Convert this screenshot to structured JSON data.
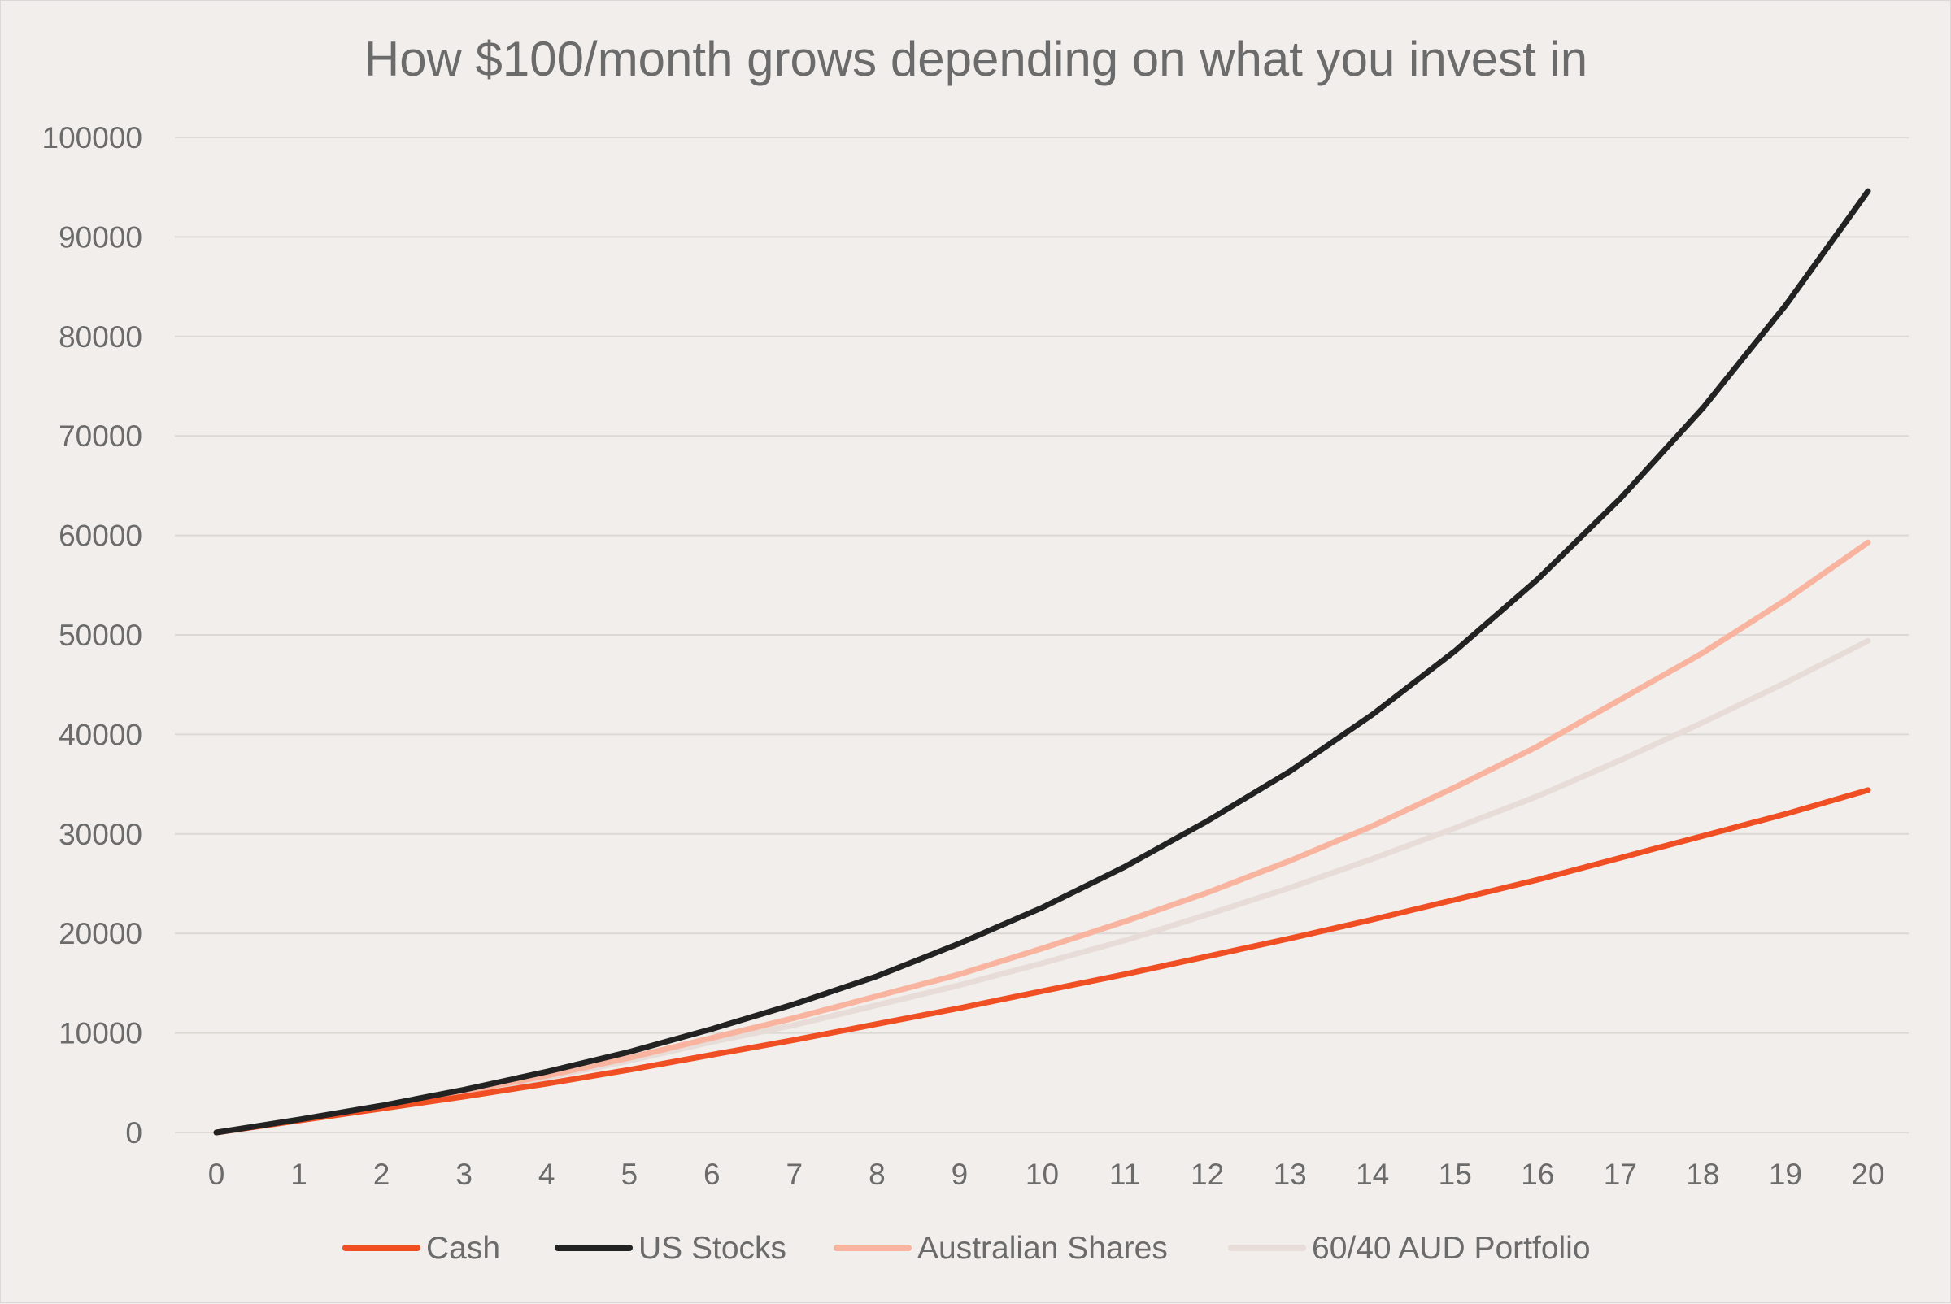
{
  "chart_data": {
    "type": "line",
    "title": "How $100/month grows depending on what you invest in",
    "xlabel": "",
    "ylabel": "",
    "x": [
      0,
      1,
      2,
      3,
      4,
      5,
      6,
      7,
      8,
      9,
      10,
      11,
      12,
      13,
      14,
      15,
      16,
      17,
      18,
      19,
      20
    ],
    "ylim": [
      0,
      100000
    ],
    "yticks": [
      0,
      10000,
      20000,
      30000,
      40000,
      50000,
      60000,
      70000,
      80000,
      90000,
      100000
    ],
    "grid": true,
    "legend_position": "bottom",
    "series": [
      {
        "name": "Cash",
        "color": "#f04e23",
        "values": [
          0,
          1200,
          2400,
          3600,
          4900,
          6300,
          7800,
          9300,
          10900,
          12500,
          14200,
          15900,
          17700,
          19500,
          21400,
          23400,
          25400,
          27600,
          29800,
          32000,
          34400
        ]
      },
      {
        "name": "US Stocks",
        "color": "#222222",
        "values": [
          0,
          1300,
          2700,
          4300,
          6100,
          8100,
          10400,
          12900,
          15700,
          19000,
          22600,
          26700,
          31300,
          36300,
          42000,
          48400,
          55600,
          63700,
          72800,
          83100,
          94600
        ]
      },
      {
        "name": "Australian Shares",
        "color": "#f9b4a0",
        "values": [
          0,
          1250,
          2600,
          4100,
          5700,
          7500,
          9500,
          11500,
          13700,
          15900,
          18500,
          21200,
          24100,
          27300,
          30800,
          34700,
          38800,
          43500,
          48200,
          53500,
          59300
        ]
      },
      {
        "name": "60/40 AUD Portfolio",
        "color": "#e8dcd8",
        "values": [
          0,
          1240,
          2580,
          4000,
          5500,
          7200,
          9100,
          10800,
          12800,
          14800,
          17000,
          19300,
          21900,
          24600,
          27500,
          30600,
          33800,
          37400,
          41200,
          45200,
          49400
        ]
      }
    ]
  }
}
